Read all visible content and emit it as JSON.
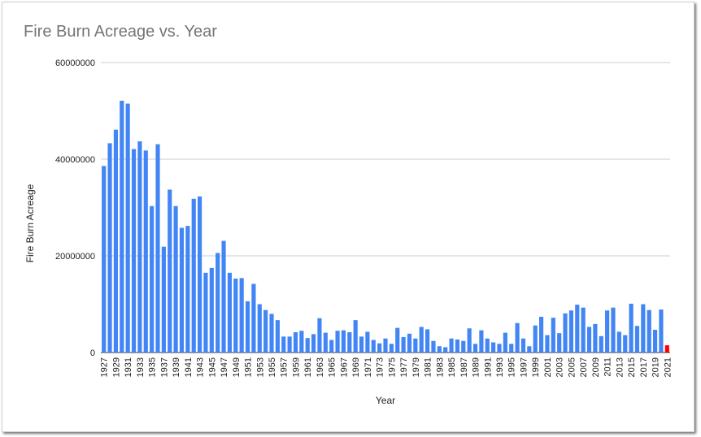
{
  "chart_data": {
    "type": "bar",
    "title": "Fire Burn Acreage vs. Year",
    "xlabel": "Year",
    "ylabel": "Fire Burn Acreage",
    "ylim": [
      0,
      60000000
    ],
    "yticks": [
      "0",
      "20000000",
      "40000000",
      "60000000"
    ],
    "grid": true,
    "legend": "none",
    "bar_color": "#4285f4",
    "highlight_color": "#ff0000",
    "highlight_category": "2021",
    "categories": [
      "1927",
      "1928",
      "1929",
      "1930",
      "1931",
      "1932",
      "1933",
      "1934",
      "1935",
      "1936",
      "1937",
      "1938",
      "1939",
      "1940",
      "1941",
      "1942",
      "1943",
      "1944",
      "1945",
      "1946",
      "1947",
      "1948",
      "1949",
      "1950",
      "1951",
      "1952",
      "1953",
      "1954",
      "1955",
      "1956",
      "1957",
      "1958",
      "1959",
      "1960",
      "1961",
      "1962",
      "1963",
      "1964",
      "1965",
      "1966",
      "1967",
      "1968",
      "1969",
      "1970",
      "1971",
      "1972",
      "1973",
      "1974",
      "1975",
      "1976",
      "1977",
      "1978",
      "1979",
      "1980",
      "1981",
      "1982",
      "1983",
      "1984",
      "1985",
      "1986",
      "1987",
      "1988",
      "1989",
      "1990",
      "1991",
      "1992",
      "1993",
      "1994",
      "1995",
      "1996",
      "1997",
      "1998",
      "1999",
      "2000",
      "2001",
      "2002",
      "2003",
      "2004",
      "2005",
      "2006",
      "2007",
      "2008",
      "2009",
      "2010",
      "2011",
      "2012",
      "2013",
      "2014",
      "2015",
      "2016",
      "2017",
      "2018",
      "2019",
      "2020",
      "2021"
    ],
    "values": [
      38600000,
      43300000,
      46100000,
      52100000,
      51500000,
      42100000,
      43700000,
      41800000,
      30300000,
      43100000,
      21900000,
      33700000,
      30300000,
      25800000,
      26200000,
      31800000,
      32300000,
      16500000,
      17500000,
      20600000,
      23100000,
      16500000,
      15300000,
      15400000,
      10600000,
      14200000,
      10000000,
      8800000,
      8000000,
      6700000,
      3300000,
      3300000,
      4200000,
      4500000,
      3000000,
      3800000,
      7100000,
      4100000,
      2600000,
      4500000,
      4600000,
      4200000,
      6700000,
      3300000,
      4300000,
      2600000,
      1900000,
      2900000,
      1800000,
      5100000,
      3200000,
      3900000,
      2900000,
      5300000,
      4800000,
      2400000,
      1300000,
      1100000,
      2900000,
      2700000,
      2400000,
      5000000,
      1800000,
      4600000,
      2900000,
      2100000,
      1800000,
      4100000,
      1800000,
      6100000,
      2900000,
      1300000,
      5600000,
      7400000,
      3600000,
      7200000,
      4000000,
      8100000,
      8700000,
      9900000,
      9300000,
      5300000,
      5900000,
      3400000,
      8700000,
      9300000,
      4300000,
      3600000,
      10100000,
      5500000,
      10000000,
      8800000,
      4700000,
      8900000,
      1500000
    ]
  }
}
